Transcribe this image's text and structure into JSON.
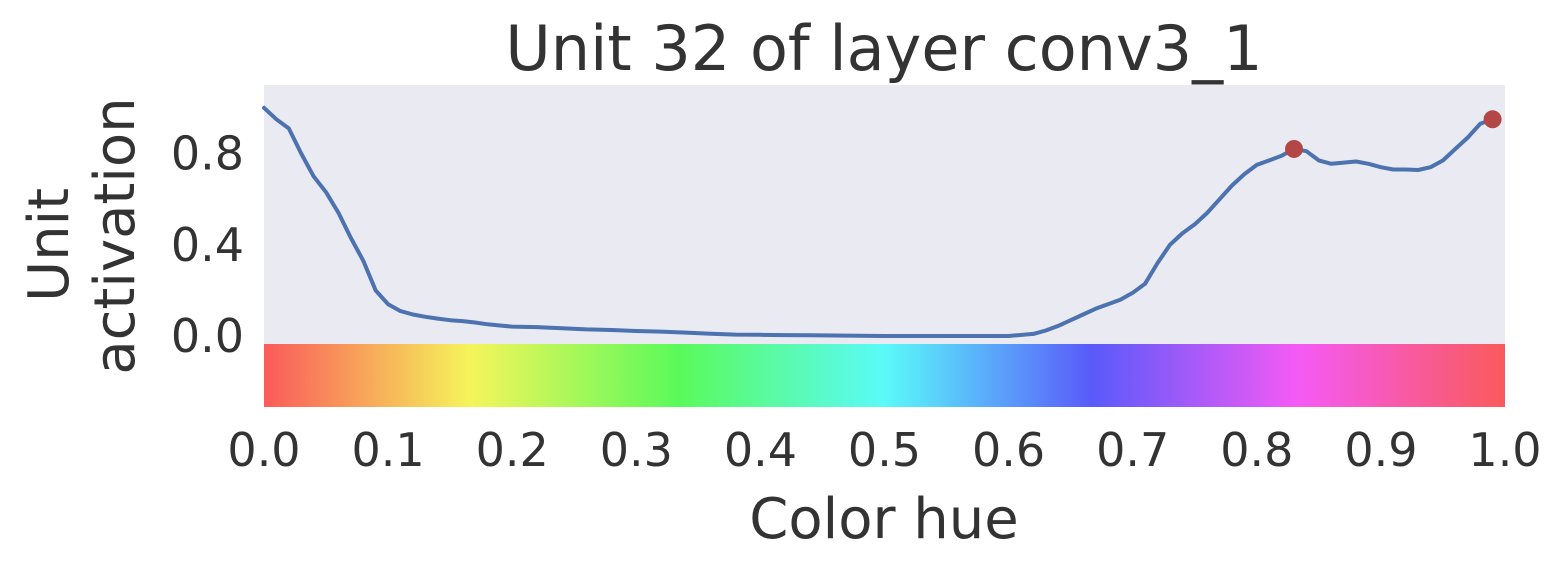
{
  "chart_data": {
    "type": "line",
    "title": "Unit 32 of layer conv3_1",
    "xlabel": "Color hue",
    "ylabel_lines": [
      "Unit",
      "activation"
    ],
    "xlim": [
      0.0,
      1.0
    ],
    "ylim": [
      -0.31,
      1.1
    ],
    "xticks": [
      "0.0",
      "0.1",
      "0.2",
      "0.3",
      "0.4",
      "0.5",
      "0.6",
      "0.7",
      "0.8",
      "0.9",
      "1.0"
    ],
    "yticks": [
      "0.0",
      "0.4",
      "0.8"
    ],
    "grid": false,
    "plot_background": "#EAEAF2",
    "series": [
      {
        "color": "#4C72B0",
        "x": [
          0.0,
          0.01,
          0.02,
          0.03,
          0.04,
          0.05,
          0.06,
          0.07,
          0.08,
          0.09,
          0.1,
          0.11,
          0.12,
          0.13,
          0.14,
          0.15,
          0.16,
          0.17,
          0.18,
          0.19,
          0.2,
          0.22,
          0.24,
          0.26,
          0.28,
          0.3,
          0.32,
          0.34,
          0.36,
          0.38,
          0.4,
          0.42,
          0.44,
          0.46,
          0.48,
          0.5,
          0.52,
          0.54,
          0.56,
          0.58,
          0.6,
          0.62,
          0.63,
          0.64,
          0.65,
          0.66,
          0.67,
          0.68,
          0.69,
          0.7,
          0.71,
          0.72,
          0.73,
          0.74,
          0.75,
          0.76,
          0.77,
          0.78,
          0.79,
          0.8,
          0.81,
          0.82,
          0.83,
          0.84,
          0.85,
          0.86,
          0.87,
          0.88,
          0.89,
          0.9,
          0.91,
          0.92,
          0.93,
          0.94,
          0.95,
          0.96,
          0.97,
          0.98,
          0.99
        ],
        "y": [
          1.0,
          0.95,
          0.91,
          0.8,
          0.7,
          0.63,
          0.54,
          0.43,
          0.33,
          0.2,
          0.14,
          0.11,
          0.095,
          0.085,
          0.077,
          0.07,
          0.066,
          0.06,
          0.052,
          0.047,
          0.042,
          0.04,
          0.035,
          0.03,
          0.027,
          0.023,
          0.02,
          0.016,
          0.011,
          0.007,
          0.006,
          0.005,
          0.004,
          0.003,
          0.002,
          0.001,
          0.001,
          0.001,
          0.001,
          0.001,
          0.001,
          0.01,
          0.025,
          0.045,
          0.07,
          0.095,
          0.12,
          0.14,
          0.16,
          0.19,
          0.23,
          0.32,
          0.4,
          0.45,
          0.49,
          0.54,
          0.6,
          0.66,
          0.71,
          0.75,
          0.77,
          0.79,
          0.82,
          0.81,
          0.77,
          0.755,
          0.76,
          0.765,
          0.755,
          0.74,
          0.73,
          0.73,
          0.728,
          0.74,
          0.77,
          0.82,
          0.87,
          0.93,
          0.95
        ]
      }
    ],
    "markers": [
      {
        "x": 0.83,
        "y": 0.82,
        "color": "#B24745"
      },
      {
        "x": 0.99,
        "y": 0.95,
        "color": "#B24745"
      }
    ],
    "colorbar": {
      "type": "hue",
      "from": 0.0,
      "to": 1.0
    }
  }
}
